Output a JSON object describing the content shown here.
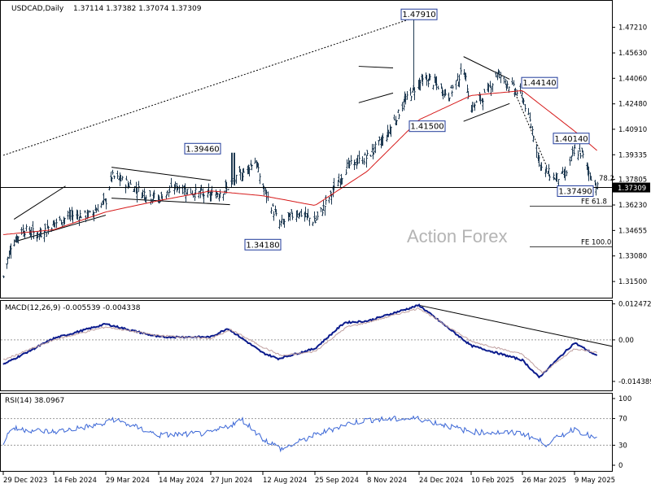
{
  "chart_data": [
    {
      "type": "candlestick",
      "symbol_header": "USDCAD,Daily",
      "ohlc_header": "1.37114 1.37382 1.37074 1.37309",
      "last_price_label": "1.37309",
      "ylim": [
        1.305,
        1.488
      ],
      "y_ticks": [
        "1.47210",
        "1.45630",
        "1.44060",
        "1.42480",
        "1.40910",
        "1.39335",
        "1.37805",
        "1.36230",
        "1.34655",
        "1.33080",
        "1.31500"
      ],
      "x_ticks": [
        "29 Dec 2023",
        "14 Feb 2024",
        "29 Mar 2024",
        "14 May 2024",
        "27 Jun 2024",
        "12 Aug 2024",
        "25 Sep 2024",
        "8 Nov 2024",
        "24 Dec 2024",
        "10 Feb 2025",
        "26 Mar 2025",
        "9 May 2025"
      ],
      "close_anchors": [
        {
          "date": "29 Dec 2023",
          "close": 1.318
        },
        {
          "date": "5 Jan 2024",
          "close": 1.337
        },
        {
          "date": "16 Jan 2024",
          "close": 1.347
        },
        {
          "date": "31 Jan 2024",
          "close": 1.344
        },
        {
          "date": "14 Feb 2024",
          "close": 1.351
        },
        {
          "date": "1 Mar 2024",
          "close": 1.356
        },
        {
          "date": "15 Mar 2024",
          "close": 1.356
        },
        {
          "date": "29 Mar 2024",
          "close": 1.365
        },
        {
          "date": "3 Apr 2024",
          "close": 1.38
        },
        {
          "date": "16 Apr 2024",
          "close": 1.376
        },
        {
          "date": "30 Apr 2024",
          "close": 1.37
        },
        {
          "date": "14 May 2024",
          "close": 1.366
        },
        {
          "date": "29 May 2024",
          "close": 1.374
        },
        {
          "date": "12 Jun 2024",
          "close": 1.37
        },
        {
          "date": "27 Jun 2024",
          "close": 1.368
        },
        {
          "date": "10 Jul 2024",
          "close": 1.372
        },
        {
          "date": "25 Jul 2024",
          "close": 1.382
        },
        {
          "date": "5 Aug 2024",
          "close": 1.39
        },
        {
          "date": "12 Aug 2024",
          "close": 1.373
        },
        {
          "date": "26 Aug 2024",
          "close": 1.35
        },
        {
          "date": "10 Sep 2024",
          "close": 1.358
        },
        {
          "date": "25 Sep 2024",
          "close": 1.352
        },
        {
          "date": "8 Oct 2024",
          "close": 1.368
        },
        {
          "date": "22 Oct 2024",
          "close": 1.386
        },
        {
          "date": "8 Nov 2024",
          "close": 1.392
        },
        {
          "date": "25 Nov 2024",
          "close": 1.405
        },
        {
          "date": "10 Dec 2024",
          "close": 1.425
        },
        {
          "date": "24 Dec 2024",
          "close": 1.438
        },
        {
          "date": "3 Jan 2025",
          "close": 1.44
        },
        {
          "date": "20 Jan 2025",
          "close": 1.43
        },
        {
          "date": "3 Feb 2025",
          "close": 1.446
        },
        {
          "date": "10 Feb 2025",
          "close": 1.422
        },
        {
          "date": "24 Feb 2025",
          "close": 1.432
        },
        {
          "date": "4 Mar 2025",
          "close": 1.444
        },
        {
          "date": "17 Mar 2025",
          "close": 1.435
        },
        {
          "date": "26 Mar 2025",
          "close": 1.429
        },
        {
          "date": "4 Apr 2025",
          "close": 1.406
        },
        {
          "date": "11 Apr 2025",
          "close": 1.385
        },
        {
          "date": "23 Apr 2025",
          "close": 1.379
        },
        {
          "date": "1 May 2025",
          "close": 1.381
        },
        {
          "date": "9 May 2025",
          "close": 1.396
        },
        {
          "date": "15 May 2025",
          "close": 1.394
        },
        {
          "date": "21 May 2025",
          "close": 1.383
        },
        {
          "date": "28 May 2025",
          "close": 1.3731
        }
      ],
      "moving_average_anchors": [
        {
          "date": "29 Dec 2023",
          "value": 1.344
        },
        {
          "date": "14 Feb 2024",
          "value": 1.347
        },
        {
          "date": "29 Mar 2024",
          "value": 1.358
        },
        {
          "date": "14 May 2024",
          "value": 1.365
        },
        {
          "date": "27 Jun 2024",
          "value": 1.371
        },
        {
          "date": "12 Aug 2024",
          "value": 1.368
        },
        {
          "date": "25 Sep 2024",
          "value": 1.362
        },
        {
          "date": "8 Nov 2024",
          "value": 1.383
        },
        {
          "date": "24 Dec 2024",
          "value": 1.415
        },
        {
          "date": "10 Feb 2025",
          "value": 1.43
        },
        {
          "date": "26 Mar 2025",
          "value": 1.433
        },
        {
          "date": "9 May 2025",
          "value": 1.408
        },
        {
          "date": "28 May 2025",
          "value": 1.396
        }
      ],
      "level_labels": [
        {
          "text": "1.47910",
          "date": "24 Dec 2024",
          "value": 1.4791
        },
        {
          "text": "1.44140",
          "date": "10 Feb 2025",
          "value": 1.4414
        },
        {
          "text": "1.41500",
          "date": "24 Dec 2024",
          "value": 1.415
        },
        {
          "text": "1.40140",
          "date": "26 Mar 2025",
          "value": 1.4014
        },
        {
          "text": "1.39460",
          "date": "27 Jun 2024",
          "value": 1.3946
        },
        {
          "text": "1.37490",
          "date": "26 Mar 2025",
          "value": 1.3749
        },
        {
          "text": "1.34180",
          "date": "12 Aug 2024",
          "value": 1.3418
        }
      ],
      "fib_labels": [
        {
          "text": "FE 61.8",
          "value": 1.3615
        },
        {
          "text": "FE 100.0",
          "value": 1.3365
        }
      ],
      "fib_partial_label": "78.2",
      "horizontal_line_value": 1.3731,
      "watermark": "Action Forex"
    },
    {
      "type": "line",
      "title": "MACD(12,26,9) -0.005539 -0.004338",
      "y_ticks": [
        "0.012472",
        "0.00",
        "-0.014389"
      ],
      "ylim": [
        -0.0175,
        0.0135
      ],
      "series": [
        {
          "role": "macd",
          "anchors": [
            {
              "date": "29 Dec 2023",
              "value": -0.0085
            },
            {
              "date": "14 Feb 2024",
              "value": 0.0005
            },
            {
              "date": "29 Mar 2024",
              "value": 0.0055
            },
            {
              "date": "14 May 2024",
              "value": 0.001
            },
            {
              "date": "27 Jun 2024",
              "value": 0.001
            },
            {
              "date": "12 Jul 2024",
              "value": 0.004
            },
            {
              "date": "12 Aug 2024",
              "value": -0.0045
            },
            {
              "date": "25 Aug 2024",
              "value": -0.0065
            },
            {
              "date": "25 Sep 2024",
              "value": -0.003
            },
            {
              "date": "20 Oct 2024",
              "value": 0.006
            },
            {
              "date": "8 Nov 2024",
              "value": 0.0065
            },
            {
              "date": "24 Dec 2024",
              "value": 0.012
            },
            {
              "date": "10 Feb 2025",
              "value": -0.002
            },
            {
              "date": "26 Mar 2025",
              "value": -0.007
            },
            {
              "date": "9 Apr 2025",
              "value": -0.013
            },
            {
              "date": "9 May 2025",
              "value": -0.001
            },
            {
              "date": "28 May 2025",
              "value": -0.0055
            }
          ]
        },
        {
          "role": "signal",
          "anchors": [
            {
              "date": "29 Dec 2023",
              "value": -0.007
            },
            {
              "date": "14 Feb 2024",
              "value": 0.0
            },
            {
              "date": "29 Mar 2024",
              "value": 0.0045
            },
            {
              "date": "14 May 2024",
              "value": 0.0015
            },
            {
              "date": "27 Jun 2024",
              "value": 0.0005
            },
            {
              "date": "15 Jul 2024",
              "value": 0.0035
            },
            {
              "date": "12 Aug 2024",
              "value": -0.0025
            },
            {
              "date": "28 Aug 2024",
              "value": -0.0055
            },
            {
              "date": "25 Sep 2024",
              "value": -0.004
            },
            {
              "date": "22 Oct 2024",
              "value": 0.0045
            },
            {
              "date": "8 Nov 2024",
              "value": 0.006
            },
            {
              "date": "24 Dec 2024",
              "value": 0.011
            },
            {
              "date": "10 Feb 2025",
              "value": -0.0005
            },
            {
              "date": "26 Mar 2025",
              "value": -0.005
            },
            {
              "date": "12 Apr 2025",
              "value": -0.0115
            },
            {
              "date": "9 May 2025",
              "value": -0.003
            },
            {
              "date": "28 May 2025",
              "value": -0.0043
            }
          ]
        }
      ]
    },
    {
      "type": "line",
      "title": "RSI(14) 38.0967",
      "y_ticks": [
        "100",
        "70",
        "30",
        "0"
      ],
      "ylim": [
        0,
        100
      ],
      "series": [
        {
          "role": "rsi",
          "anchors": [
            {
              "date": "29 Dec 2023",
              "value": 33
            },
            {
              "date": "5 Jan 2024",
              "value": 55
            },
            {
              "date": "14 Feb 2024",
              "value": 50
            },
            {
              "date": "29 Mar 2024",
              "value": 62
            },
            {
              "date": "3 Apr 2024",
              "value": 70
            },
            {
              "date": "14 May 2024",
              "value": 45
            },
            {
              "date": "27 Jun 2024",
              "value": 48
            },
            {
              "date": "25 Jul 2024",
              "value": 68
            },
            {
              "date": "12 Aug 2024",
              "value": 40
            },
            {
              "date": "28 Aug 2024",
              "value": 24
            },
            {
              "date": "25 Sep 2024",
              "value": 45
            },
            {
              "date": "22 Oct 2024",
              "value": 62
            },
            {
              "date": "8 Nov 2024",
              "value": 68
            },
            {
              "date": "24 Dec 2024",
              "value": 70
            },
            {
              "date": "10 Feb 2025",
              "value": 50
            },
            {
              "date": "26 Mar 2025",
              "value": 48
            },
            {
              "date": "15 Apr 2025",
              "value": 32
            },
            {
              "date": "9 May 2025",
              "value": 55
            },
            {
              "date": "28 May 2025",
              "value": 38
            }
          ]
        }
      ]
    }
  ]
}
